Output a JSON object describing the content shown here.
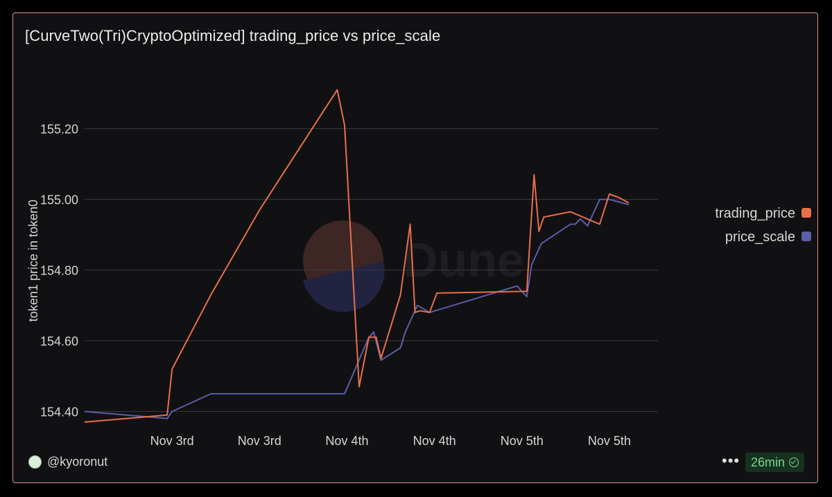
{
  "title": "[CurveTwo(Tri)CryptoOptimized] trading_price vs price_scale",
  "author": "@kyoronut",
  "more_label": "•••",
  "refresh_label": "26min",
  "watermark": "Dune",
  "colors": {
    "trading_price": "#e8704a",
    "price_scale": "#5b5ea8",
    "grid": "#3a3a3f",
    "text": "#d6d6d6"
  },
  "chart_data": {
    "type": "line",
    "title": "[CurveTwo(Tri)CryptoOptimized] trading_price vs price_scale",
    "xlabel": "",
    "ylabel": "token1 price in token0",
    "ylim": [
      154.36,
      155.37
    ],
    "yticks": [
      154.4,
      154.6,
      154.8,
      155.0,
      155.2
    ],
    "ytick_labels": [
      "154.40",
      "154.60",
      "154.80",
      "155.00",
      "155.20"
    ],
    "xlim": [
      0,
      118
    ],
    "xticks": [
      18,
      36,
      54,
      72,
      90,
      108
    ],
    "xtick_labels": [
      "Nov 3rd",
      "Nov 3rd",
      "Nov 4th",
      "Nov 4th",
      "Nov 5th",
      "Nov 5th"
    ],
    "grid": true,
    "legend_position": "right",
    "series": [
      {
        "name": "trading_price",
        "color": "#e8704a",
        "x": [
          0,
          17,
          18,
          26,
          36,
          52,
          53.5,
          56.5,
          58.5,
          60,
          61,
          65,
          67,
          68,
          69,
          71,
          72.5,
          91,
          92.5,
          93.5,
          94.5,
          100,
          106,
          108,
          110,
          112
        ],
        "y": [
          154.37,
          154.39,
          154.52,
          154.73,
          154.97,
          155.31,
          155.21,
          154.47,
          154.61,
          154.61,
          154.55,
          154.73,
          154.93,
          154.68,
          154.685,
          154.68,
          154.735,
          154.74,
          155.07,
          154.91,
          154.95,
          154.965,
          154.93,
          155.015,
          155.005,
          154.99
        ]
      },
      {
        "name": "price_scale",
        "color": "#5b5ea8",
        "x": [
          0,
          17,
          18,
          26,
          53.5,
          58.5,
          59.5,
          61,
          65,
          66,
          68.5,
          71,
          89,
          91,
          92,
          94,
          100,
          101,
          102,
          103.5,
          106,
          108,
          112
        ],
        "y": [
          154.4,
          154.38,
          154.4,
          154.45,
          154.45,
          154.61,
          154.625,
          154.545,
          154.58,
          154.625,
          154.7,
          154.68,
          154.755,
          154.725,
          154.815,
          154.875,
          154.93,
          154.93,
          154.945,
          154.925,
          155.0,
          155.0,
          154.985
        ]
      }
    ]
  }
}
